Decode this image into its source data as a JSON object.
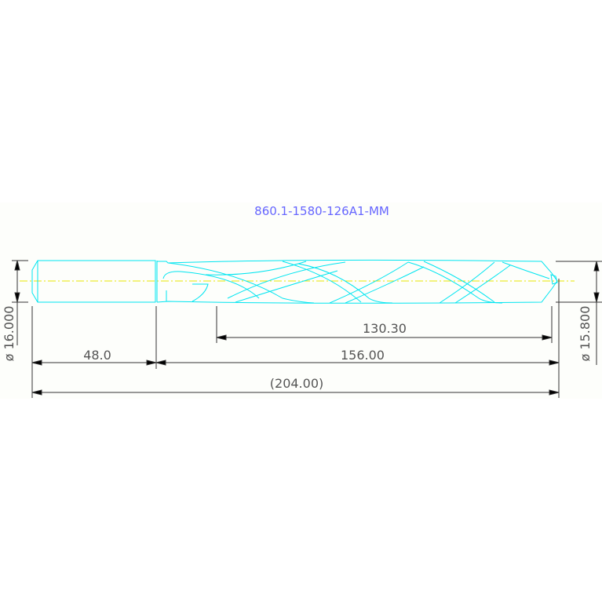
{
  "title": "860.1-1580-126A1-MM",
  "dimensions": {
    "shank_diameter": "ø 16.000",
    "drill_diameter": "ø 15.800",
    "flute_length": "130.30",
    "shank_length": "48.0",
    "body_length": "156.00",
    "overall_length": "(204.00)"
  },
  "colors": {
    "outline": "#00e5f0",
    "centerline": "#e6e600",
    "title": "#6666ff",
    "dimension": "#333333"
  }
}
